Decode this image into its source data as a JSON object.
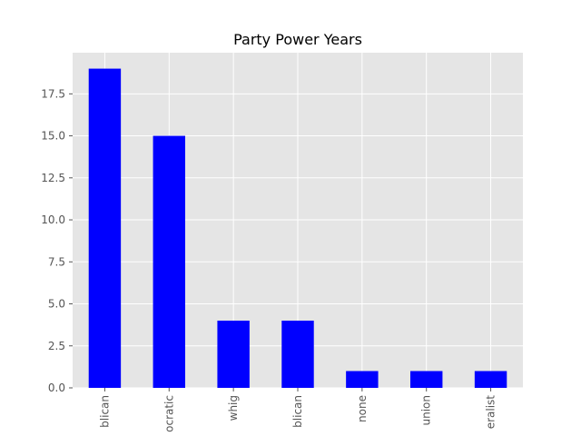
{
  "chart_data": {
    "type": "bar",
    "title": "Party Power Years",
    "xlabel": "",
    "ylabel": "",
    "categories": [
      "blican",
      "ocratic",
      "whig",
      "blican",
      "none",
      "union",
      "eralist"
    ],
    "values": [
      19,
      15,
      4,
      4,
      1,
      1,
      1
    ],
    "ylim": [
      0,
      19.95
    ],
    "yticks": [
      0.0,
      2.5,
      5.0,
      7.5,
      10.0,
      12.5,
      15.0,
      17.5
    ],
    "ytick_labels": [
      "0.0",
      "2.5",
      "5.0",
      "7.5",
      "10.0",
      "12.5",
      "15.0",
      "17.5"
    ],
    "grid": true,
    "bar_color": "#0000ff",
    "background_color": "#e5e5e5",
    "grid_color": "#ffffff"
  }
}
